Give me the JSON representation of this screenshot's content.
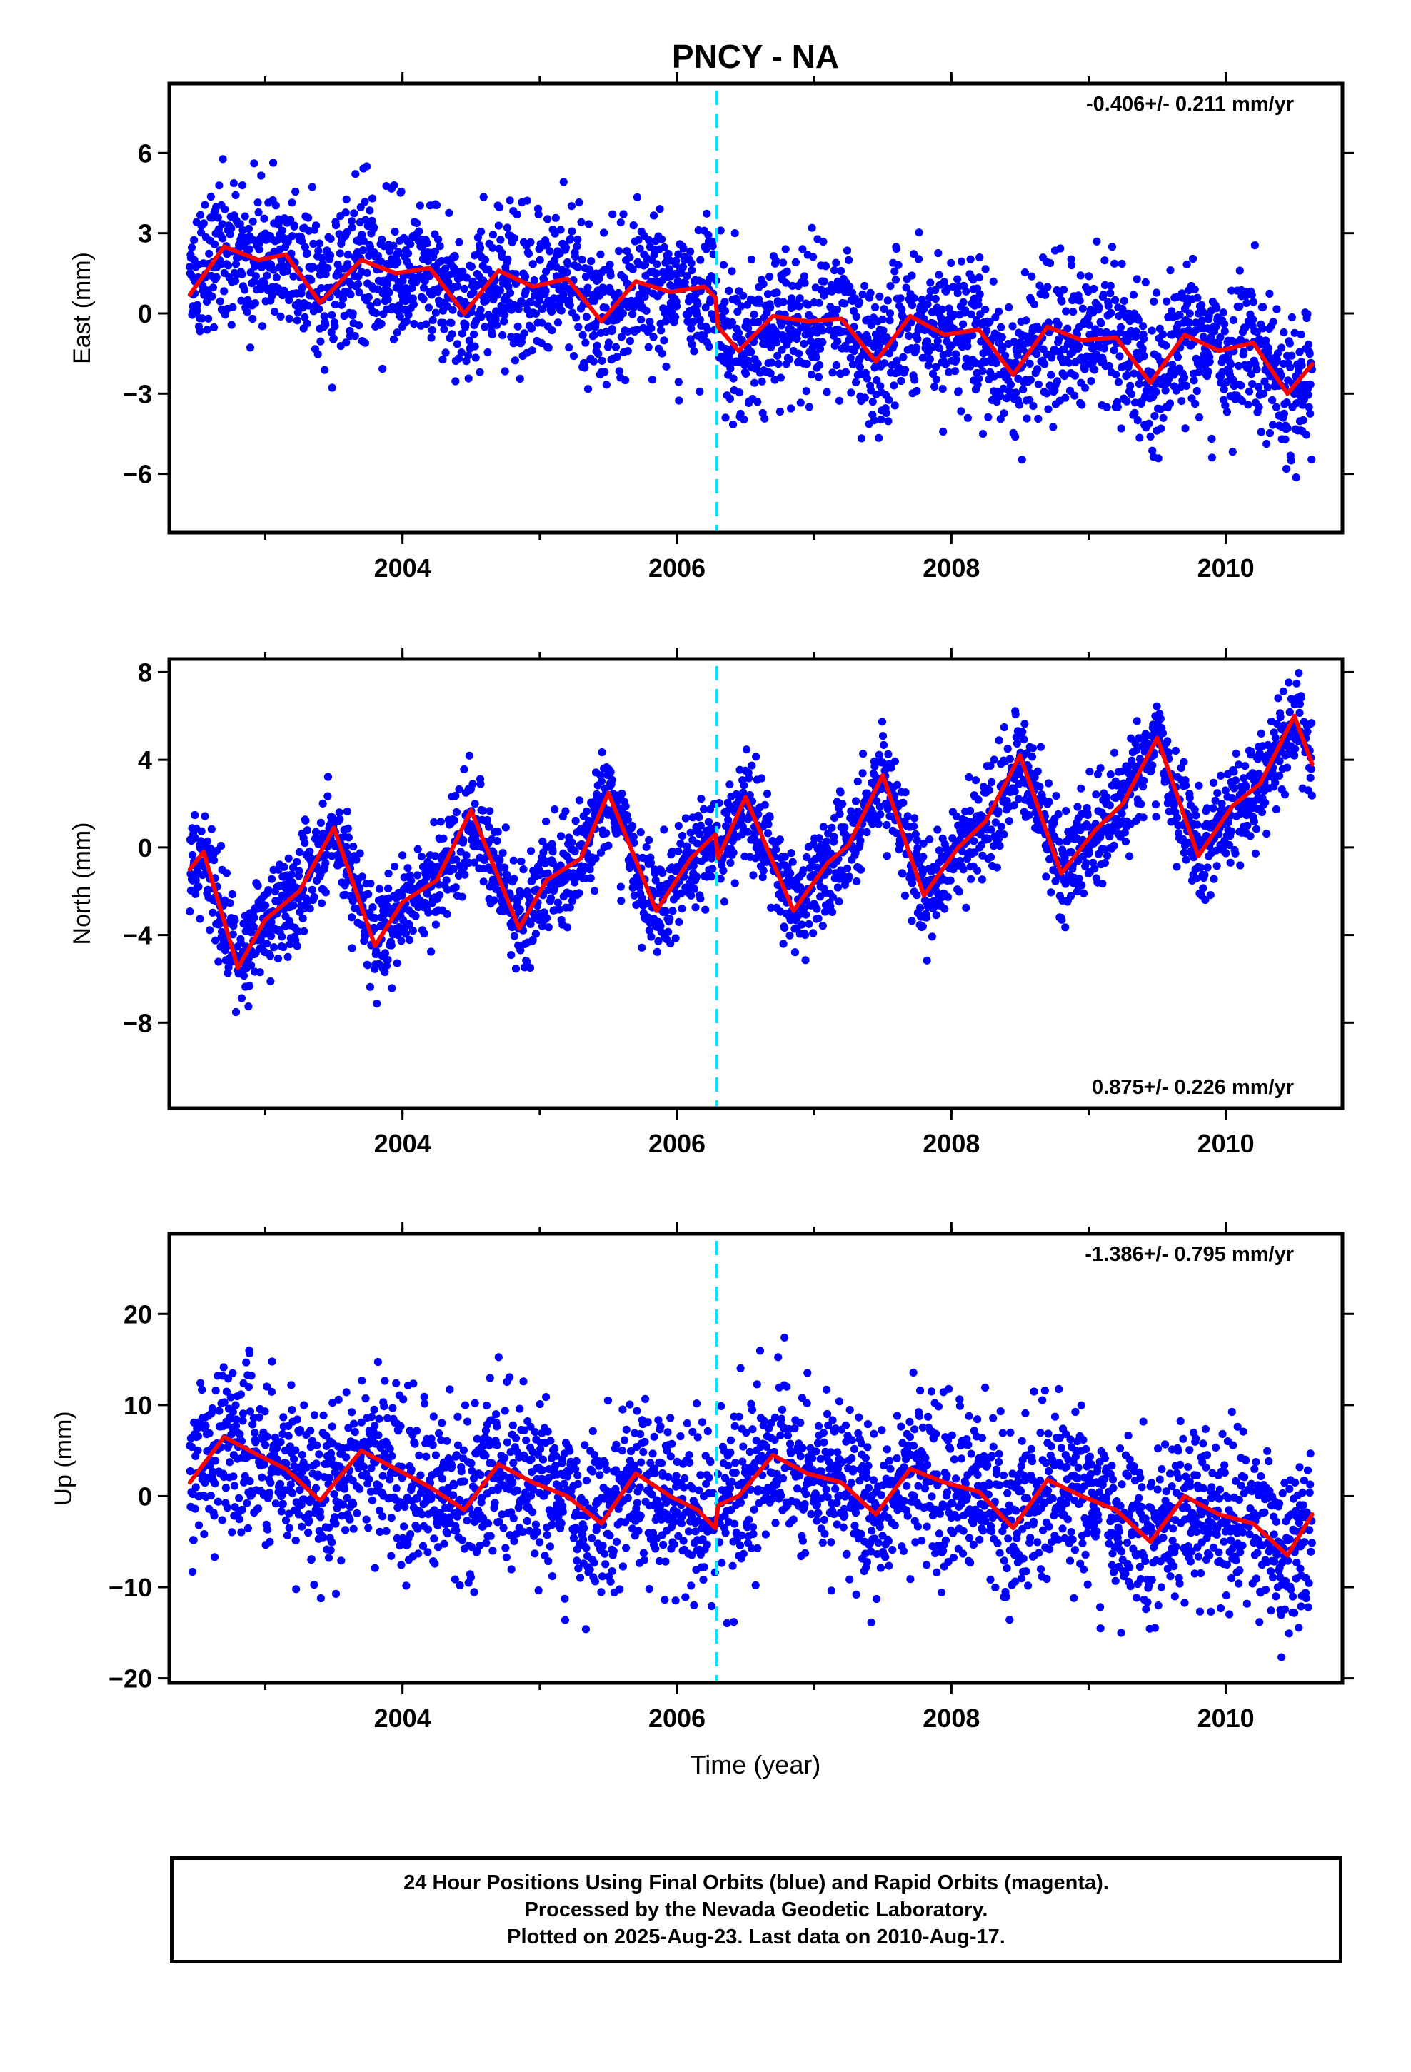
{
  "title": "PNCY - NA",
  "xlabel": "Time (year)",
  "colors": {
    "final_orbits": "#0000ff",
    "model": "#ff0000",
    "event_line": "#00e5ff"
  },
  "footer": {
    "line1": "24 Hour Positions Using Final Orbits (blue) and Rapid Orbits (magenta).",
    "line2": "Processed by the Nevada Geodetic Laboratory.",
    "line3": "Plotted on 2025-Aug-23. Last data on 2010-Aug-17."
  },
  "chart_data": [
    {
      "type": "scatter",
      "component": "East",
      "ylabel": "East (mm)",
      "rate_label": "-0.406+/- 0.211 mm/yr",
      "rate_position": "top-right",
      "xlim": [
        2002.3,
        2010.85
      ],
      "ylim": [
        -8.2,
        8.6
      ],
      "xticks": [
        2004,
        2006,
        2008,
        2010
      ],
      "yticks": [
        -6,
        -3,
        0,
        3,
        6
      ],
      "event_line_x": 2006.29,
      "grid": false,
      "series": [
        {
          "kind": "daily_positions",
          "x_start": 2002.45,
          "x_end": 2010.63,
          "trend_mm_per_yr": -0.406,
          "scatter_sd_mm": 1.35
        },
        {
          "kind": "model",
          "x": [
            2002.45,
            2002.7,
            2002.95,
            2003.15,
            2003.4,
            2003.7,
            2003.95,
            2004.2,
            2004.45,
            2004.7,
            2004.95,
            2005.2,
            2005.45,
            2005.7,
            2005.95,
            2006.2,
            2006.28,
            2006.3,
            2006.45,
            2006.7,
            2006.95,
            2007.2,
            2007.45,
            2007.7,
            2007.95,
            2008.2,
            2008.45,
            2008.7,
            2008.95,
            2009.2,
            2009.45,
            2009.7,
            2009.95,
            2010.2,
            2010.45,
            2010.63
          ],
          "y": [
            0.7,
            2.5,
            2.0,
            2.2,
            0.4,
            2.0,
            1.5,
            1.7,
            0.0,
            1.6,
            1.0,
            1.3,
            -0.3,
            1.2,
            0.8,
            1.0,
            0.6,
            -0.5,
            -1.4,
            -0.1,
            -0.3,
            -0.2,
            -1.8,
            -0.1,
            -0.8,
            -0.6,
            -2.3,
            -0.5,
            -1.0,
            -0.9,
            -2.6,
            -0.8,
            -1.4,
            -1.1,
            -3.0,
            -1.9
          ]
        }
      ]
    },
    {
      "type": "scatter",
      "component": "North",
      "ylabel": "North (mm)",
      "rate_label": "0.875+/- 0.226 mm/yr",
      "rate_position": "bottom-right",
      "xlim": [
        2002.3,
        2010.85
      ],
      "ylim": [
        -11.9,
        8.6
      ],
      "xticks": [
        2004,
        2006,
        2008,
        2010
      ],
      "yticks": [
        -8,
        -4,
        0,
        4,
        8
      ],
      "event_line_x": 2006.29,
      "grid": false,
      "series": [
        {
          "kind": "daily_positions",
          "x_start": 2002.45,
          "x_end": 2010.63,
          "trend_mm_per_yr": 0.875,
          "scatter_sd_mm": 1.15
        },
        {
          "kind": "model",
          "x": [
            2002.45,
            2002.55,
            2002.8,
            2003.0,
            2003.25,
            2003.5,
            2003.8,
            2004.0,
            2004.25,
            2004.5,
            2004.85,
            2005.05,
            2005.3,
            2005.5,
            2005.85,
            2006.1,
            2006.28,
            2006.3,
            2006.5,
            2006.85,
            2007.1,
            2007.25,
            2007.5,
            2007.8,
            2008.05,
            2008.25,
            2008.5,
            2008.8,
            2009.05,
            2009.25,
            2009.5,
            2009.8,
            2010.05,
            2010.25,
            2010.5,
            2010.63
          ],
          "y": [
            -1.0,
            -0.2,
            -5.5,
            -3.3,
            -2.0,
            0.9,
            -4.5,
            -2.5,
            -1.5,
            1.7,
            -3.7,
            -1.5,
            -0.5,
            2.5,
            -2.9,
            -0.5,
            0.6,
            -0.5,
            2.3,
            -2.9,
            -0.7,
            0.1,
            3.3,
            -2.2,
            0.0,
            1.2,
            4.2,
            -1.2,
            0.8,
            2.0,
            5.0,
            -0.4,
            1.9,
            2.9,
            6.0,
            3.8
          ]
        }
      ]
    },
    {
      "type": "scatter",
      "component": "Up",
      "ylabel": "Up (mm)",
      "rate_label": "-1.386+/- 0.795 mm/yr",
      "rate_position": "top-right",
      "xlim": [
        2002.3,
        2010.85
      ],
      "ylim": [
        -20.5,
        28.8
      ],
      "xticks": [
        2004,
        2006,
        2008,
        2010
      ],
      "yticks": [
        -20,
        -10,
        0,
        10,
        20
      ],
      "event_line_x": 2006.29,
      "grid": false,
      "series": [
        {
          "kind": "daily_positions",
          "x_start": 2002.45,
          "x_end": 2010.63,
          "trend_mm_per_yr": -1.386,
          "scatter_sd_mm": 4.5
        },
        {
          "kind": "model",
          "x": [
            2002.45,
            2002.7,
            2002.95,
            2003.15,
            2003.4,
            2003.7,
            2003.95,
            2004.2,
            2004.45,
            2004.7,
            2004.95,
            2005.2,
            2005.45,
            2005.7,
            2005.95,
            2006.15,
            2006.28,
            2006.3,
            2006.45,
            2006.7,
            2006.95,
            2007.2,
            2007.45,
            2007.7,
            2007.95,
            2008.2,
            2008.45,
            2008.7,
            2008.95,
            2009.2,
            2009.45,
            2009.7,
            2009.95,
            2010.2,
            2010.45,
            2010.63
          ],
          "y": [
            1.5,
            6.5,
            4.5,
            3.0,
            -0.5,
            5.0,
            3.0,
            1.0,
            -1.5,
            3.5,
            1.5,
            0.0,
            -3.0,
            2.5,
            0.0,
            -1.5,
            -3.5,
            -1.0,
            0.0,
            4.5,
            2.5,
            1.5,
            -2.0,
            3.0,
            1.5,
            0.5,
            -3.5,
            1.8,
            0.0,
            -1.5,
            -5.0,
            0.0,
            -2.0,
            -3.0,
            -6.5,
            -2.0
          ]
        }
      ]
    }
  ]
}
